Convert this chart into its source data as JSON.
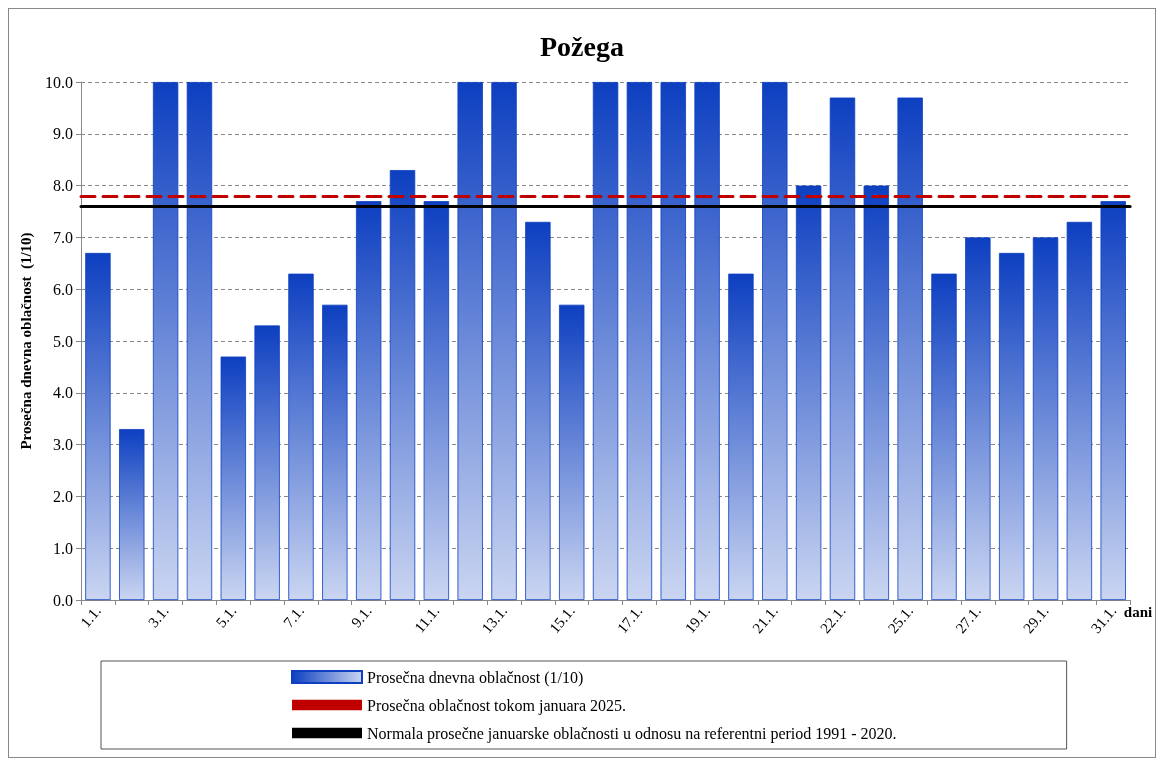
{
  "chart_data": {
    "type": "bar",
    "title": "Požega",
    "xlabel": "dani",
    "ylabel": "Prosečna dnevna oblačnost  (1/10)",
    "categories": [
      "1.1.",
      null,
      "3.1.",
      null,
      "5.1.",
      null,
      "7.1.",
      null,
      "9.1.",
      null,
      "11.1.",
      null,
      "13.1.",
      null,
      "15.1.",
      null,
      "17.1.",
      null,
      "19.1.",
      null,
      "21.1.",
      null,
      "22.1.",
      null,
      "25.1.",
      null,
      "27.1.",
      null,
      "29.1.",
      null,
      "31.1."
    ],
    "series": [
      {
        "name": "Prosečna dnevna oblačnost (1/10)",
        "color": "#0d3fc0",
        "values": [
          6.7,
          3.3,
          10,
          10,
          4.7,
          5.3,
          6.3,
          5.7,
          7.7,
          8.3,
          7.7,
          10,
          10,
          7.3,
          5.7,
          10,
          10,
          10,
          10,
          6.3,
          10,
          8.0,
          9.7,
          8.0,
          9.7,
          6.3,
          7.0,
          6.7,
          7.0,
          7.3,
          7.7
        ]
      }
    ],
    "ylim": [
      0,
      10
    ],
    "yticks": [
      {
        "value": 0,
        "label": "0.0"
      },
      {
        "value": 1,
        "label": "1.0"
      },
      {
        "value": 2,
        "label": "2.0"
      },
      {
        "value": 3,
        "label": "3.0"
      },
      {
        "value": 4,
        "label": "4.0"
      },
      {
        "value": 5,
        "label": "5.0"
      },
      {
        "value": 6,
        "label": "6.0"
      },
      {
        "value": 7,
        "label": "7.0"
      },
      {
        "value": 8,
        "label": "8.0"
      },
      {
        "value": 9,
        "label": "9.0"
      },
      {
        "value": 10,
        "label": "10.0"
      }
    ],
    "ref_lines": [
      {
        "axis": "y",
        "value": 7.8,
        "label": "Prosečna oblačnost tokom januara 2025.",
        "color": "#c00000",
        "line_style": "dashed"
      },
      {
        "axis": "y",
        "value": 7.6,
        "label": "Normala prosečne januarske oblačnosti u odnosu na referentni period 1991 - 2020.",
        "color": "#000000",
        "line_style": "solid"
      }
    ],
    "grid": "y",
    "legend": "bottom"
  }
}
